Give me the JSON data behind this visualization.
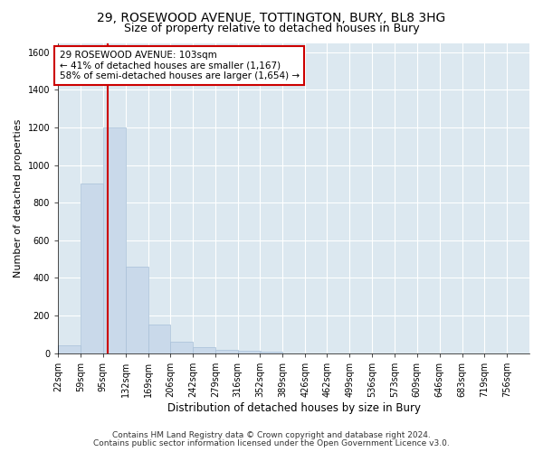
{
  "title1": "29, ROSEWOOD AVENUE, TOTTINGTON, BURY, BL8 3HG",
  "title2": "Size of property relative to detached houses in Bury",
  "xlabel": "Distribution of detached houses by size in Bury",
  "ylabel": "Number of detached properties",
  "bar_color": "#c9d9ea",
  "bar_edge_color": "#a8c0d8",
  "bin_labels": [
    "22sqm",
    "59sqm",
    "95sqm",
    "132sqm",
    "169sqm",
    "206sqm",
    "242sqm",
    "279sqm",
    "316sqm",
    "352sqm",
    "389sqm",
    "426sqm",
    "462sqm",
    "499sqm",
    "536sqm",
    "573sqm",
    "609sqm",
    "646sqm",
    "683sqm",
    "719sqm",
    "756sqm"
  ],
  "bin_edges": [
    22,
    59,
    95,
    132,
    169,
    206,
    242,
    279,
    316,
    352,
    389,
    426,
    462,
    499,
    536,
    573,
    609,
    646,
    683,
    719,
    756
  ],
  "bin_width": 37,
  "bar_heights": [
    40,
    900,
    1200,
    460,
    150,
    60,
    30,
    15,
    12,
    8,
    0,
    0,
    0,
    0,
    0,
    0,
    0,
    0,
    0,
    0
  ],
  "ylim": [
    0,
    1650
  ],
  "yticks": [
    0,
    200,
    400,
    600,
    800,
    1000,
    1200,
    1400,
    1600
  ],
  "property_size": 103,
  "property_line_color": "#cc0000",
  "annotation_text": "29 ROSEWOOD AVENUE: 103sqm\n← 41% of detached houses are smaller (1,167)\n58% of semi-detached houses are larger (1,654) →",
  "annotation_box_color": "#ffffff",
  "annotation_box_edge_color": "#cc0000",
  "footer1": "Contains HM Land Registry data © Crown copyright and database right 2024.",
  "footer2": "Contains public sector information licensed under the Open Government Licence v3.0.",
  "fig_bg_color": "#ffffff",
  "plot_bg_color": "#dce8f0",
  "grid_color": "#ffffff",
  "title1_fontsize": 10,
  "title2_fontsize": 9,
  "xlabel_fontsize": 8.5,
  "ylabel_fontsize": 8,
  "tick_fontsize": 7,
  "footer_fontsize": 6.5,
  "annotation_fontsize": 7.5
}
